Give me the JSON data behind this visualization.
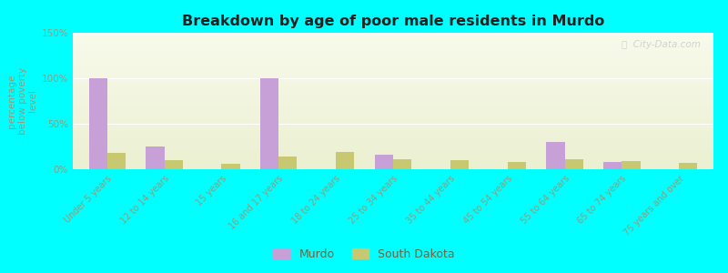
{
  "title": "Breakdown by age of poor male residents in Murdo",
  "categories": [
    "Under 5 years",
    "12 to 14 years",
    "15 years",
    "16 and 17 years",
    "18 to 24 years",
    "25 to 34 years",
    "35 to 44 years",
    "45 to 54 years",
    "55 to 64 years",
    "65 to 74 years",
    "75 years and over"
  ],
  "murdo_values": [
    100,
    25,
    0,
    100,
    0,
    16,
    0,
    0,
    30,
    8,
    0
  ],
  "sd_values": [
    18,
    10,
    6,
    14,
    19,
    11,
    10,
    8,
    11,
    9,
    7
  ],
  "murdo_color": "#c8a0d8",
  "sd_color": "#c8c870",
  "ylabel": "percentage\nbelow poverty\nlevel",
  "ylim": [
    0,
    150
  ],
  "yticks": [
    0,
    50,
    100,
    150
  ],
  "ytick_labels": [
    "0%",
    "50%",
    "100%",
    "150%"
  ],
  "bg_color": "#00ffff",
  "legend_murdo": "Murdo",
  "legend_sd": "South Dakota",
  "watermark": "ⓘ  City-Data.com"
}
